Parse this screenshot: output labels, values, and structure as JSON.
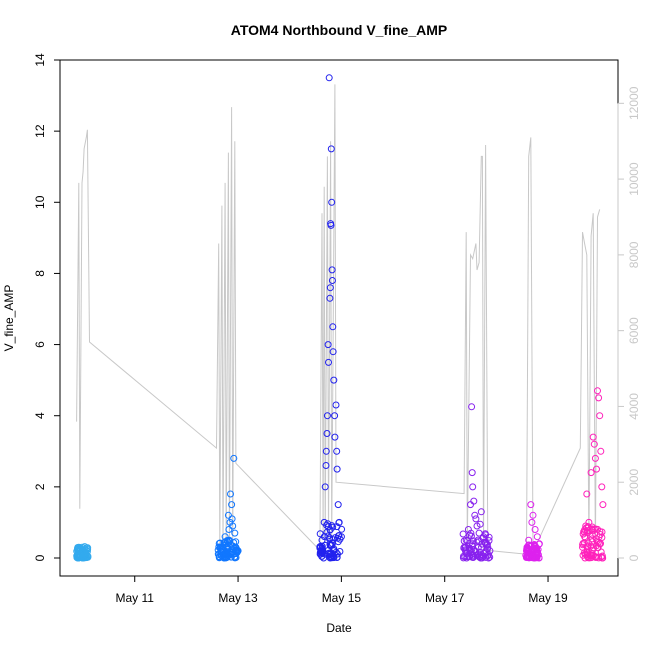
{
  "chart_data": {
    "type": "scatter",
    "title": "ATOM4 Northbound V_fine_AMP",
    "xlabel": "Date",
    "ylabel": "V_fine_AMP",
    "ylim": [
      0,
      14
    ],
    "y_ticks": [
      "0",
      "2",
      "4",
      "6",
      "8",
      "10",
      "12",
      "14"
    ],
    "y2lim": [
      0,
      12800
    ],
    "y2_ticks": [
      "0",
      "2000",
      "4000",
      "6000",
      "8000",
      "10000",
      "12000"
    ],
    "x_ticks": [
      {
        "label": "May 11",
        "date": "2015-05-11"
      },
      {
        "label": "May 13",
        "date": "2015-05-13"
      },
      {
        "label": "May 15",
        "date": "2015-05-15"
      },
      {
        "label": "May 17",
        "date": "2015-05-17"
      },
      {
        "label": "May 19",
        "date": "2015-05-19"
      }
    ],
    "xlim": [
      "2015-05-09 17:00",
      "2015-05-20 02:00"
    ],
    "series": [
      {
        "color": "#33aaee",
        "points": [
          [
            "2015-05-09 21:30",
            0.2
          ],
          [
            "2015-05-09 22:00",
            0.3
          ],
          [
            "2015-05-09 22:30",
            0.25
          ],
          [
            "2015-05-09 23:00",
            0.15
          ],
          [
            "2015-05-09 23:30",
            0.3
          ],
          [
            "2015-05-10 00:00",
            0.2
          ],
          [
            "2015-05-10 00:30",
            0.28
          ],
          [
            "2015-05-10 01:00",
            0.1
          ],
          [
            "2015-05-10 01:30",
            0.22
          ],
          [
            "2015-05-10 02:00",
            0.18
          ],
          [
            "2015-05-09 22:15",
            0.08
          ],
          [
            "2015-05-10 00:45",
            0.32
          ]
        ]
      },
      {
        "color": "#1177ff",
        "points": [
          [
            "2015-05-12 15:00",
            0.1
          ],
          [
            "2015-05-12 16:00",
            0.2
          ],
          [
            "2015-05-12 17:00",
            0.3
          ],
          [
            "2015-05-12 18:00",
            0.6
          ],
          [
            "2015-05-12 18:30",
            0.4
          ],
          [
            "2015-05-12 19:00",
            0.25
          ],
          [
            "2015-05-12 19:30",
            1.2
          ],
          [
            "2015-05-12 20:00",
            0.5
          ],
          [
            "2015-05-12 20:30",
            1.8
          ],
          [
            "2015-05-12 21:00",
            1.5
          ],
          [
            "2015-05-12 21:30",
            0.9
          ],
          [
            "2015-05-12 22:00",
            2.8
          ],
          [
            "2015-05-12 22:30",
            0.7
          ],
          [
            "2015-05-12 23:00",
            0.3
          ],
          [
            "2015-05-13 00:00",
            0.2
          ],
          [
            "2015-05-12 20:15",
            1.0
          ],
          [
            "2015-05-12 19:45",
            0.8
          ],
          [
            "2015-05-12 21:15",
            1.1
          ],
          [
            "2015-05-12 23:30",
            0.15
          ],
          [
            "2015-05-12 16:30",
            0.05
          ]
        ]
      },
      {
        "color": "#2222ee",
        "points": [
          [
            "2015-05-14 14:00",
            0.3
          ],
          [
            "2015-05-14 15:00",
            0.5
          ],
          [
            "2015-05-14 16:00",
            1.0
          ],
          [
            "2015-05-14 16:30",
            2.0
          ],
          [
            "2015-05-14 17:00",
            3.0
          ],
          [
            "2015-05-14 17:30",
            4.0
          ],
          [
            "2015-05-14 18:00",
            5.5
          ],
          [
            "2015-05-14 18:20",
            13.5
          ],
          [
            "2015-05-14 18:40",
            7.3
          ],
          [
            "2015-05-14 19:00",
            9.4
          ],
          [
            "2015-05-14 19:10",
            9.35
          ],
          [
            "2015-05-14 19:20",
            11.5
          ],
          [
            "2015-05-14 19:30",
            10.0
          ],
          [
            "2015-05-14 19:40",
            8.1
          ],
          [
            "2015-05-14 20:00",
            6.5
          ],
          [
            "2015-05-14 20:30",
            5.0
          ],
          [
            "2015-05-14 21:00",
            3.4
          ],
          [
            "2015-05-14 21:30",
            4.3
          ],
          [
            "2015-05-14 22:00",
            2.5
          ],
          [
            "2015-05-14 22:30",
            1.5
          ],
          [
            "2015-05-14 23:00",
            1.0
          ],
          [
            "2015-05-15 00:00",
            0.6
          ],
          [
            "2015-05-14 17:50",
            6.0
          ],
          [
            "2015-05-14 18:50",
            7.6
          ],
          [
            "2015-05-14 19:50",
            7.8
          ],
          [
            "2015-05-14 20:10",
            5.8
          ],
          [
            "2015-05-14 20:50",
            4.0
          ],
          [
            "2015-05-14 17:20",
            3.5
          ],
          [
            "2015-05-14 16:50",
            2.6
          ],
          [
            "2015-05-14 21:50",
            3.0
          ]
        ]
      },
      {
        "color": "#8822ee",
        "points": [
          [
            "2015-05-17 09:00",
            0.3
          ],
          [
            "2015-05-17 10:00",
            0.5
          ],
          [
            "2015-05-17 11:00",
            0.8
          ],
          [
            "2015-05-17 12:00",
            1.5
          ],
          [
            "2015-05-17 12:30",
            4.25
          ],
          [
            "2015-05-17 13:00",
            2.0
          ],
          [
            "2015-05-17 13:30",
            1.6
          ],
          [
            "2015-05-17 14:00",
            1.2
          ],
          [
            "2015-05-17 15:00",
            0.9
          ],
          [
            "2015-05-17 16:00",
            0.7
          ],
          [
            "2015-05-17 17:00",
            1.3
          ],
          [
            "2015-05-17 18:00",
            0.6
          ],
          [
            "2015-05-17 19:00",
            0.4
          ],
          [
            "2015-05-17 20:00",
            0.3
          ],
          [
            "2015-05-17 21:00",
            0.2
          ],
          [
            "2015-05-17 12:45",
            2.4
          ],
          [
            "2015-05-17 14:30",
            1.1
          ],
          [
            "2015-05-17 16:30",
            0.95
          ]
        ]
      },
      {
        "color": "#dd22ee",
        "points": [
          [
            "2015-05-18 14:00",
            0.2
          ],
          [
            "2015-05-18 15:00",
            0.5
          ],
          [
            "2015-05-18 16:00",
            1.5
          ],
          [
            "2015-05-18 17:00",
            1.2
          ],
          [
            "2015-05-18 18:00",
            0.8
          ],
          [
            "2015-05-18 19:00",
            0.6
          ],
          [
            "2015-05-18 20:00",
            0.4
          ],
          [
            "2015-05-18 16:30",
            1.0
          ]
        ]
      },
      {
        "color": "#ff22bb",
        "points": [
          [
            "2015-05-19 16:00",
            0.3
          ],
          [
            "2015-05-19 17:00",
            0.6
          ],
          [
            "2015-05-19 18:00",
            1.8
          ],
          [
            "2015-05-19 19:00",
            1.0
          ],
          [
            "2015-05-19 20:00",
            2.4
          ],
          [
            "2015-05-19 21:00",
            3.4
          ],
          [
            "2015-05-19 22:00",
            2.8
          ],
          [
            "2015-05-19 23:00",
            4.7
          ],
          [
            "2015-05-19 23:30",
            4.5
          ],
          [
            "2015-05-20 00:00",
            4.0
          ],
          [
            "2015-05-20 00:30",
            3.0
          ],
          [
            "2015-05-20 01:00",
            2.0
          ],
          [
            "2015-05-20 01:30",
            1.5
          ],
          [
            "2015-05-19 21:30",
            3.2
          ],
          [
            "2015-05-19 22:30",
            2.5
          ],
          [
            "2015-05-19 17:30",
            0.9
          ]
        ]
      }
    ],
    "dense_clusters": [
      {
        "color": "#33aaee",
        "start": "2015-05-09 21:00",
        "end": "2015-05-10 02:30",
        "ymax": 0.3
      },
      {
        "color": "#1177ff",
        "start": "2015-05-12 14:30",
        "end": "2015-05-13 00:00",
        "ymax": 0.5
      },
      {
        "color": "#2222ee",
        "start": "2015-05-14 14:00",
        "end": "2015-05-15 00:30",
        "ymax": 1.0
      },
      {
        "color": "#8822ee",
        "start": "2015-05-17 08:30",
        "end": "2015-05-17 21:00",
        "ymax": 0.7
      },
      {
        "color": "#dd22ee",
        "start": "2015-05-18 13:30",
        "end": "2015-05-18 20:00",
        "ymax": 0.4
      },
      {
        "color": "#ff22bb",
        "start": "2015-05-19 16:00",
        "end": "2015-05-20 01:30",
        "ymax": 0.9
      }
    ],
    "secondary_line": {
      "color": "#c8c8c8",
      "points": [
        [
          "2015-05-09 21:00",
          3600
        ],
        [
          "2015-05-09 22:00",
          9900
        ],
        [
          "2015-05-09 22:30",
          1300
        ],
        [
          "2015-05-09 23:30",
          9900
        ],
        [
          "2015-05-10 00:00",
          10200
        ],
        [
          "2015-05-10 00:30",
          10800
        ],
        [
          "2015-05-10 01:30",
          11100
        ],
        [
          "2015-05-10 02:00",
          11300
        ],
        [
          "2015-05-10 03:00",
          5700
        ],
        [
          "2015-05-12 14:00",
          2900
        ],
        [
          "2015-05-12 15:00",
          8300
        ],
        [
          "2015-05-12 15:30",
          300
        ],
        [
          "2015-05-12 16:30",
          9300
        ],
        [
          "2015-05-12 17:00",
          300
        ],
        [
          "2015-05-12 18:00",
          9900
        ],
        [
          "2015-05-12 18:30",
          300
        ],
        [
          "2015-05-12 19:30",
          10700
        ],
        [
          "2015-05-12 20:00",
          300
        ],
        [
          "2015-05-12 21:00",
          11900
        ],
        [
          "2015-05-12 21:30",
          300
        ],
        [
          "2015-05-12 22:30",
          11000
        ],
        [
          "2015-05-12 23:00",
          2500
        ],
        [
          "2015-05-14 14:00",
          200
        ],
        [
          "2015-05-14 15:00",
          9100
        ],
        [
          "2015-05-14 15:30",
          500
        ],
        [
          "2015-05-14 16:00",
          9800
        ],
        [
          "2015-05-14 16:30",
          400
        ],
        [
          "2015-05-14 17:30",
          10600
        ],
        [
          "2015-05-14 18:00",
          500
        ],
        [
          "2015-05-14 19:00",
          11000
        ],
        [
          "2015-05-14 19:30",
          400
        ],
        [
          "2015-05-14 21:00",
          12500
        ],
        [
          "2015-05-14 21:30",
          2000
        ],
        [
          "2015-05-17 09:00",
          1700
        ],
        [
          "2015-05-17 10:00",
          8600
        ],
        [
          "2015-05-17 10:30",
          300
        ],
        [
          "2015-05-17 12:00",
          8000
        ],
        [
          "2015-05-17 13:00",
          7900
        ],
        [
          "2015-05-17 14:30",
          8300
        ],
        [
          "2015-05-17 15:00",
          7600
        ],
        [
          "2015-05-17 16:00",
          7800
        ],
        [
          "2015-05-17 17:00",
          10600
        ],
        [
          "2015-05-17 17:30",
          10600
        ],
        [
          "2015-05-17 18:00",
          200
        ],
        [
          "2015-05-17 19:00",
          10900
        ],
        [
          "2015-05-17 20:00",
          200
        ],
        [
          "2015-05-18 14:00",
          100
        ],
        [
          "2015-05-18 15:00",
          10600
        ],
        [
          "2015-05-18 16:00",
          11100
        ],
        [
          "2015-05-18 17:00",
          200
        ],
        [
          "2015-05-18 19:00",
          400
        ],
        [
          "2015-05-19 15:00",
          2900
        ],
        [
          "2015-05-19 16:00",
          8600
        ],
        [
          "2015-05-19 17:00",
          8300
        ],
        [
          "2015-05-19 18:00",
          8000
        ],
        [
          "2015-05-19 19:00",
          300
        ],
        [
          "2015-05-19 20:00",
          8500
        ],
        [
          "2015-05-19 21:00",
          9100
        ],
        [
          "2015-05-19 22:00",
          200
        ],
        [
          "2015-05-19 23:00",
          9000
        ],
        [
          "2015-05-20 00:00",
          9200
        ]
      ]
    },
    "grid": false,
    "legend": "none"
  }
}
